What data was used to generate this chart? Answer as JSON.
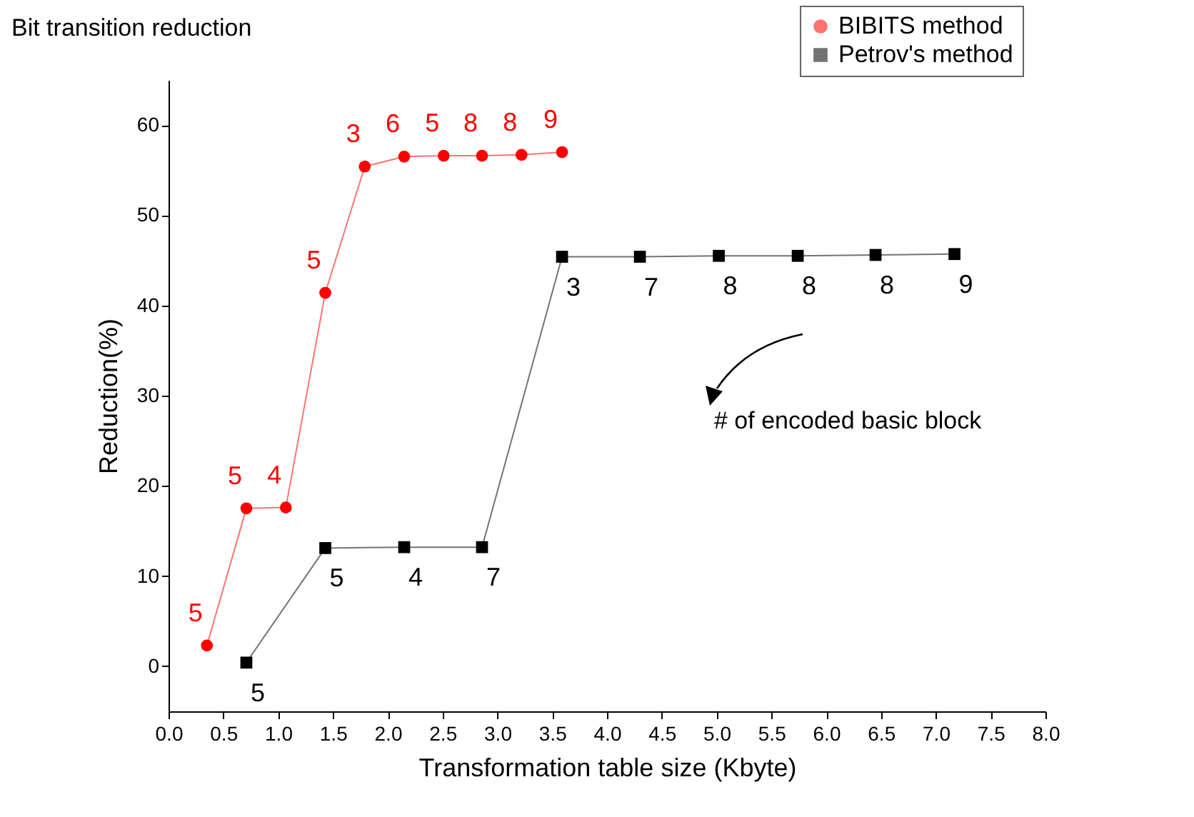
{
  "chart_data": {
    "type": "line",
    "title": "Bit transition reduction",
    "xlabel": "Transformation table size (Kbyte)",
    "ylabel": "Reduction(%)",
    "xlim": [
      0,
      8
    ],
    "xticks": [
      {
        "value": 0,
        "label": "0.0"
      },
      {
        "value": 0.5,
        "label": "0.5"
      },
      {
        "value": 1,
        "label": "1.0"
      },
      {
        "value": 1.5,
        "label": "1.5"
      },
      {
        "value": 2,
        "label": "2.0"
      },
      {
        "value": 2.5,
        "label": "2.5"
      },
      {
        "value": 3,
        "label": "3.0"
      },
      {
        "value": 3.5,
        "label": "3.5"
      },
      {
        "value": 4,
        "label": "4.0"
      },
      {
        "value": 4.5,
        "label": "4.5"
      },
      {
        "value": 5,
        "label": "5.0"
      },
      {
        "value": 5.5,
        "label": "5.5"
      },
      {
        "value": 6,
        "label": "6.0"
      },
      {
        "value": 6.5,
        "label": "6.5"
      },
      {
        "value": 7,
        "label": "7.0"
      },
      {
        "value": 7.5,
        "label": "7.5"
      },
      {
        "value": 8,
        "label": "8.0"
      }
    ],
    "ylim": [
      -5,
      65
    ],
    "yticks": [
      0,
      10,
      20,
      30,
      40,
      50,
      60
    ],
    "grid": false,
    "legend": "top right",
    "series": [
      {
        "name": "BIBITS method",
        "color": "#ff0000",
        "marker": "circle",
        "x": [
          0.35,
          0.71,
          1.07,
          1.43,
          1.79,
          2.15,
          2.51,
          2.86,
          3.22,
          3.59
        ],
        "values": [
          2.3,
          17.5,
          17.6,
          41.4,
          55.4,
          56.5,
          56.6,
          56.6,
          56.7,
          57.0
        ]
      },
      {
        "name": "Petrov's method",
        "color": "#000000",
        "marker": "square",
        "x": [
          0.71,
          1.43,
          2.15,
          2.86,
          3.59,
          4.3,
          5.02,
          5.74,
          6.45,
          7.17
        ],
        "values": [
          0.4,
          13.1,
          13.2,
          13.2,
          45.4,
          45.4,
          45.5,
          45.5,
          45.6,
          45.7
        ]
      }
    ],
    "annotations": [
      "# of encoded basic block",
      {
        "text": "5",
        "x": 0.35,
        "y": 2.3
      },
      {
        "text": "5",
        "x": 0.71,
        "y": 17.5
      },
      {
        "text": "4",
        "x": 1.07,
        "y": 17.6
      },
      {
        "text": "5",
        "x": 1.43,
        "y": 41.4
      },
      {
        "text": "3",
        "x": 1.79,
        "y": 55.4
      },
      {
        "text": "6",
        "x": 2.15,
        "y": 56.5
      },
      {
        "text": "5",
        "x": 2.51,
        "y": 56.6
      },
      {
        "text": "8",
        "x": 2.86,
        "y": 56.6
      },
      {
        "text": "8",
        "x": 3.22,
        "y": 56.7
      },
      {
        "text": "9",
        "x": 3.59,
        "y": 57.0
      },
      {
        "text": "5",
        "x": 0.71,
        "y": 0.4
      },
      {
        "text": "5",
        "x": 1.43,
        "y": 13.1
      },
      {
        "text": "4",
        "x": 2.15,
        "y": 13.2
      },
      {
        "text": "7",
        "x": 2.86,
        "y": 13.2
      },
      {
        "text": "3",
        "x": 3.59,
        "y": 45.4
      },
      {
        "text": "7",
        "x": 4.3,
        "y": 45.4
      },
      {
        "text": "8",
        "x": 5.02,
        "y": 45.5
      },
      {
        "text": "8",
        "x": 5.74,
        "y": 45.5
      },
      {
        "text": "8",
        "x": 6.45,
        "y": 45.6
      },
      {
        "text": "9",
        "x": 7.17,
        "y": 45.7
      }
    ]
  }
}
